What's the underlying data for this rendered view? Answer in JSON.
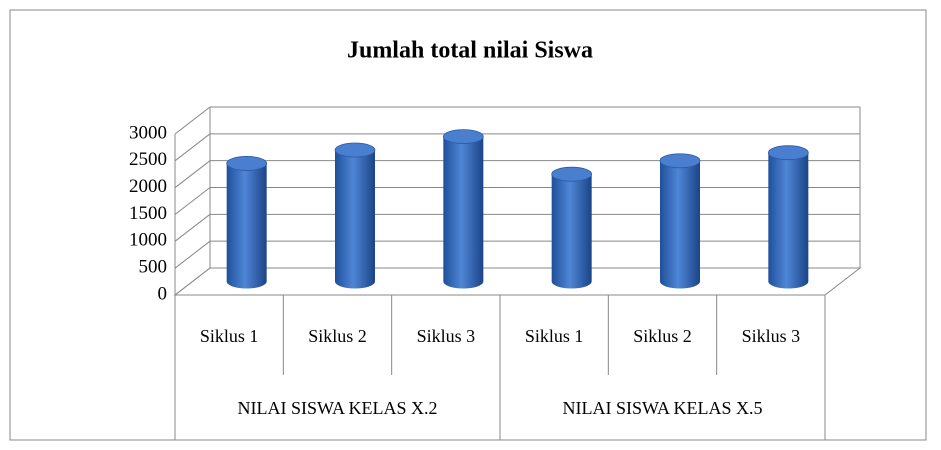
{
  "chart_data": {
    "type": "bar3d",
    "title": "Jumlah total nilai Siswa",
    "categories": [
      "Siklus 1",
      "Siklus 2",
      "Siklus 3",
      "Siklus 1",
      "Siklus 2",
      "Siklus 3"
    ],
    "group_labels": [
      "NILAI SISWA KELAS X.2",
      "NILAI SISWA KELAS X.5"
    ],
    "values": [
      2200,
      2450,
      2700,
      2000,
      2250,
      2400
    ],
    "color": "#3a6fc4",
    "ylim": [
      0,
      3000
    ],
    "yticks": [
      0,
      500,
      1000,
      1500,
      2000,
      2500,
      3000
    ],
    "grid": true
  }
}
